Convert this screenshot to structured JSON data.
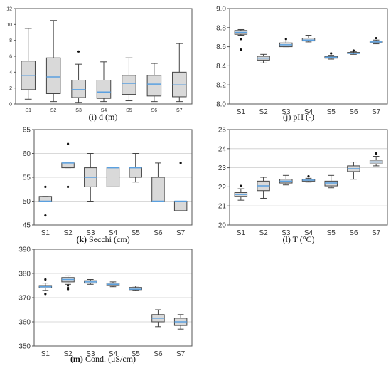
{
  "colors": {
    "box_fill": "#d9d9d9",
    "median_line": "#5aa0e0",
    "whisker": "#444444",
    "outlier": "#111111",
    "axis": "#555555",
    "grid": "#cccccc"
  },
  "chart_data": [
    {
      "id": "i",
      "type": "box",
      "caption_letter": "(i)",
      "caption_rest": " d (m)",
      "letter_bold": false,
      "categories": [
        "S1",
        "S2",
        "S3",
        "S4",
        "S5",
        "S6",
        "S7"
      ],
      "ylim": [
        0,
        12
      ],
      "yticks": [
        0,
        2,
        4,
        6,
        8,
        10,
        12
      ],
      "grid": false,
      "boxes": [
        {
          "min": 0.6,
          "q1": 1.8,
          "median": 3.6,
          "q3": 5.4,
          "max": 9.5,
          "outliers": []
        },
        {
          "min": 0.3,
          "q1": 1.3,
          "median": 3.4,
          "q3": 5.8,
          "max": 10.5,
          "outliers": []
        },
        {
          "min": 0.2,
          "q1": 0.8,
          "median": 1.8,
          "q3": 3.0,
          "max": 5.0,
          "outliers": [
            6.6
          ]
        },
        {
          "min": 0.3,
          "q1": 0.7,
          "median": 1.5,
          "q3": 3.0,
          "max": 5.3,
          "outliers": []
        },
        {
          "min": 0.4,
          "q1": 1.2,
          "median": 2.6,
          "q3": 3.6,
          "max": 5.8,
          "outliers": []
        },
        {
          "min": 0.3,
          "q1": 1.0,
          "median": 2.5,
          "q3": 3.6,
          "max": 5.1,
          "outliers": []
        },
        {
          "min": 0.3,
          "q1": 0.9,
          "median": 2.4,
          "q3": 4.0,
          "max": 7.6,
          "outliers": []
        }
      ]
    },
    {
      "id": "j",
      "type": "box",
      "caption_letter": "(j)",
      "caption_rest": " pH (-)",
      "letter_bold": false,
      "categories": [
        "S1",
        "S2",
        "S3",
        "S4",
        "S5",
        "S6",
        "S7"
      ],
      "ylim": [
        8.0,
        9.0
      ],
      "yticks": [
        8.0,
        8.2,
        8.4,
        8.6,
        8.8,
        9.0
      ],
      "grid": false,
      "boxes": [
        {
          "min": 8.72,
          "q1": 8.73,
          "median": 8.75,
          "q3": 8.77,
          "max": 8.78,
          "outliers": [
            8.68,
            8.57
          ]
        },
        {
          "min": 8.43,
          "q1": 8.46,
          "median": 8.48,
          "q3": 8.5,
          "max": 8.52,
          "outliers": []
        },
        {
          "min": 8.6,
          "q1": 8.6,
          "median": 8.62,
          "q3": 8.64,
          "max": 8.66,
          "outliers": [
            8.68
          ]
        },
        {
          "min": 8.65,
          "q1": 8.66,
          "median": 8.67,
          "q3": 8.69,
          "max": 8.72,
          "outliers": []
        },
        {
          "min": 8.47,
          "q1": 8.48,
          "median": 8.49,
          "q3": 8.5,
          "max": 8.51,
          "outliers": [
            8.53
          ]
        },
        {
          "min": 8.52,
          "q1": 8.53,
          "median": 8.53,
          "q3": 8.54,
          "max": 8.55,
          "outliers": [
            8.56
          ]
        },
        {
          "min": 8.63,
          "q1": 8.64,
          "median": 8.65,
          "q3": 8.66,
          "max": 8.67,
          "outliers": [
            8.69
          ]
        }
      ]
    },
    {
      "id": "k",
      "type": "box",
      "caption_letter": "(k)",
      "caption_rest": " Secchi (cm)",
      "letter_bold": true,
      "categories": [
        "S1",
        "S2",
        "S3",
        "S4",
        "S5",
        "S6",
        "S7"
      ],
      "ylim": [
        45,
        65
      ],
      "yticks": [
        45,
        50,
        55,
        60,
        65
      ],
      "grid": true,
      "boxes": [
        {
          "min": 50,
          "q1": 50,
          "median": 50,
          "q3": 51,
          "max": 51,
          "outliers": [
            53,
            47
          ]
        },
        {
          "min": 57,
          "q1": 57,
          "median": 58,
          "q3": 58,
          "max": 58,
          "outliers": [
            62,
            53
          ]
        },
        {
          "min": 50,
          "q1": 53,
          "median": 55,
          "q3": 57,
          "max": 60,
          "outliers": []
        },
        {
          "min": 53,
          "q1": 53,
          "median": 57,
          "q3": 57,
          "max": 57,
          "outliers": []
        },
        {
          "min": 54,
          "q1": 55,
          "median": 57,
          "q3": 57,
          "max": 60,
          "outliers": []
        },
        {
          "min": 50,
          "q1": 50,
          "median": 50,
          "q3": 55,
          "max": 58,
          "outliers": []
        },
        {
          "min": 48,
          "q1": 48,
          "median": 50,
          "q3": 50,
          "max": 50,
          "outliers": [
            58
          ]
        }
      ]
    },
    {
      "id": "l",
      "type": "box",
      "caption_letter": "(l)",
      "caption_rest": " T (°C)",
      "letter_bold": false,
      "categories": [
        "S1",
        "S2",
        "S3",
        "S4",
        "S5",
        "S6",
        "S7"
      ],
      "ylim": [
        20,
        25
      ],
      "yticks": [
        20,
        21,
        22,
        23,
        24,
        25
      ],
      "grid": true,
      "boxes": [
        {
          "min": 21.3,
          "q1": 21.5,
          "median": 21.6,
          "q3": 21.7,
          "max": 21.9,
          "outliers": [
            22.05
          ]
        },
        {
          "min": 21.4,
          "q1": 21.8,
          "median": 22.05,
          "q3": 22.3,
          "max": 22.5,
          "outliers": []
        },
        {
          "min": 22.1,
          "q1": 22.2,
          "median": 22.3,
          "q3": 22.4,
          "max": 22.6,
          "outliers": []
        },
        {
          "min": 22.25,
          "q1": 22.3,
          "median": 22.35,
          "q3": 22.4,
          "max": 22.45,
          "outliers": [
            22.55
          ]
        },
        {
          "min": 21.95,
          "q1": 22.05,
          "median": 22.2,
          "q3": 22.3,
          "max": 22.6,
          "outliers": []
        },
        {
          "min": 22.4,
          "q1": 22.8,
          "median": 22.95,
          "q3": 23.1,
          "max": 23.3,
          "outliers": []
        },
        {
          "min": 23.1,
          "q1": 23.2,
          "median": 23.3,
          "q3": 23.4,
          "max": 23.6,
          "outliers": [
            23.75
          ]
        }
      ]
    },
    {
      "id": "m",
      "type": "box",
      "caption_letter": "(m)",
      "caption_rest": " Cond. (μS/cm)",
      "letter_bold": true,
      "categories": [
        "S1",
        "S2",
        "S3",
        "S4",
        "S5",
        "S6",
        "S7"
      ],
      "ylim": [
        350,
        390
      ],
      "yticks": [
        350,
        360,
        370,
        380,
        390
      ],
      "grid": true,
      "boxes": [
        {
          "min": 373,
          "q1": 374,
          "median": 374.5,
          "q3": 375,
          "max": 376,
          "outliers": [
            377.5,
            371.5
          ]
        },
        {
          "min": 375.5,
          "q1": 376.5,
          "median": 377.5,
          "q3": 378.3,
          "max": 379,
          "outliers": [
            375,
            374,
            373.5
          ]
        },
        {
          "min": 375.5,
          "q1": 376,
          "median": 376.5,
          "q3": 377,
          "max": 377.5,
          "outliers": []
        },
        {
          "min": 374.5,
          "q1": 375,
          "median": 375.5,
          "q3": 376,
          "max": 376.5,
          "outliers": []
        },
        {
          "min": 373,
          "q1": 373.3,
          "median": 373.5,
          "q3": 374.2,
          "max": 374.8,
          "outliers": []
        },
        {
          "min": 358,
          "q1": 360,
          "median": 361.5,
          "q3": 363,
          "max": 365,
          "outliers": []
        },
        {
          "min": 357,
          "q1": 358.5,
          "median": 360,
          "q3": 361.5,
          "max": 363,
          "outliers": []
        }
      ]
    }
  ]
}
